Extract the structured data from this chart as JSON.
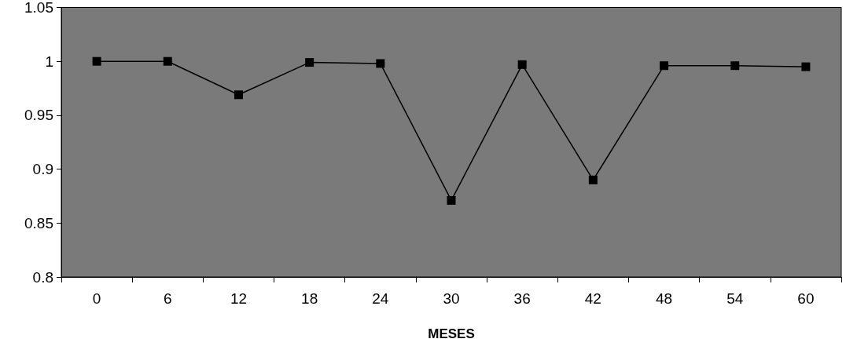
{
  "chart_data": {
    "type": "line",
    "xlabel": "MESES",
    "categories": [
      "0",
      "6",
      "12",
      "18",
      "24",
      "30",
      "36",
      "42",
      "48",
      "54",
      "60"
    ],
    "series": [
      {
        "color": "#000000",
        "values": [
          1.0,
          1.0,
          0.969,
          0.999,
          0.998,
          0.871,
          0.997,
          0.89,
          0.996,
          0.996,
          0.995
        ]
      }
    ],
    "ylim": [
      0.8,
      1.05
    ],
    "yticks": [
      0.8,
      0.85,
      0.9,
      0.95,
      1,
      1.05
    ],
    "grid": false,
    "marker": "square",
    "line_style": "solid"
  }
}
